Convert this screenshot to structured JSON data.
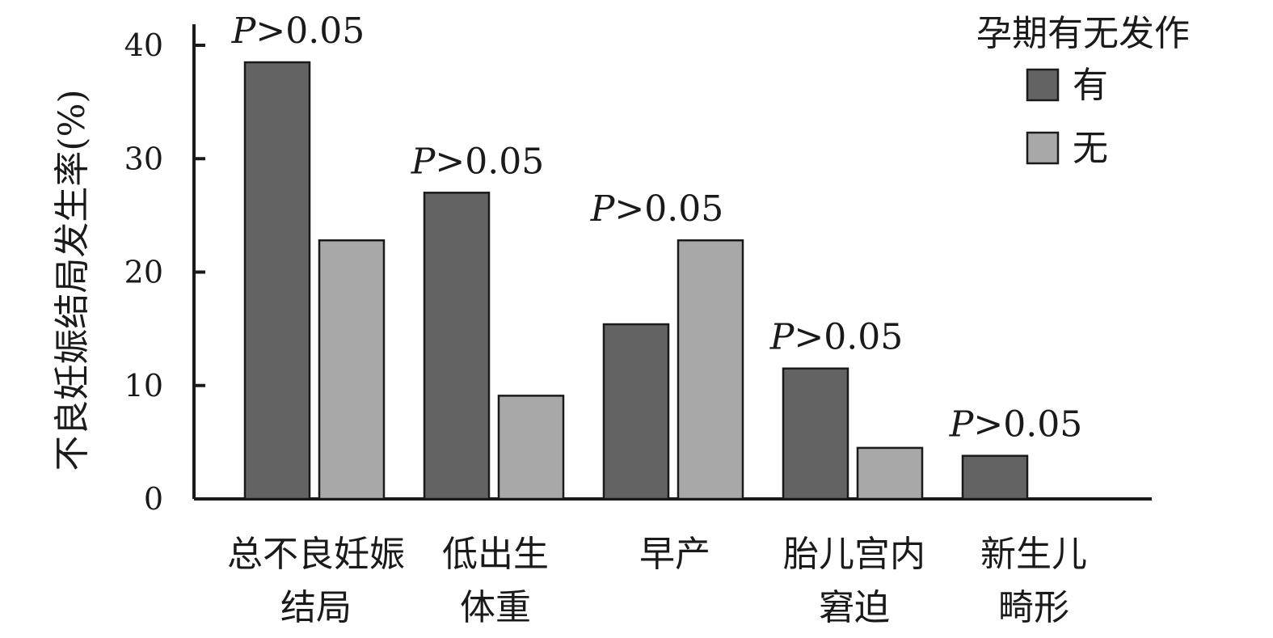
{
  "chart_data": {
    "type": "bar",
    "ylabel": "不良妊娠结局发生率(%)",
    "xlabel": "",
    "ylim": [
      0,
      40
    ],
    "yticks": [
      0,
      10,
      20,
      30,
      40
    ],
    "grid": false,
    "legend": {
      "title": "孕期有无发作",
      "position": "top-right"
    },
    "categories": [
      [
        "总不良妊娠",
        "结局"
      ],
      [
        "低出生",
        "体重"
      ],
      [
        "早产"
      ],
      [
        "胎儿宫内",
        "窘迫"
      ],
      [
        "新生儿",
        "畸形"
      ]
    ],
    "series": [
      {
        "name": "有",
        "color": "#636363",
        "values": [
          38.5,
          27.0,
          15.4,
          11.5,
          3.8
        ]
      },
      {
        "name": "无",
        "color": "#a8a8a8",
        "values": [
          22.8,
          9.1,
          22.8,
          4.5,
          0
        ]
      }
    ],
    "annotations": [
      {
        "category_index": 0,
        "text": "P>0.05",
        "italic": "P",
        "rest": ">0.05"
      },
      {
        "category_index": 1,
        "text": "P>0.05",
        "italic": "P",
        "rest": ">0.05"
      },
      {
        "category_index": 2,
        "text": "P>0.05",
        "italic": "P",
        "rest": ">0.05"
      },
      {
        "category_index": 3,
        "text": "P>0.05",
        "italic": "P",
        "rest": ">0.05"
      },
      {
        "category_index": 4,
        "text": "P>0.05",
        "italic": "P",
        "rest": ">0.05"
      }
    ]
  }
}
